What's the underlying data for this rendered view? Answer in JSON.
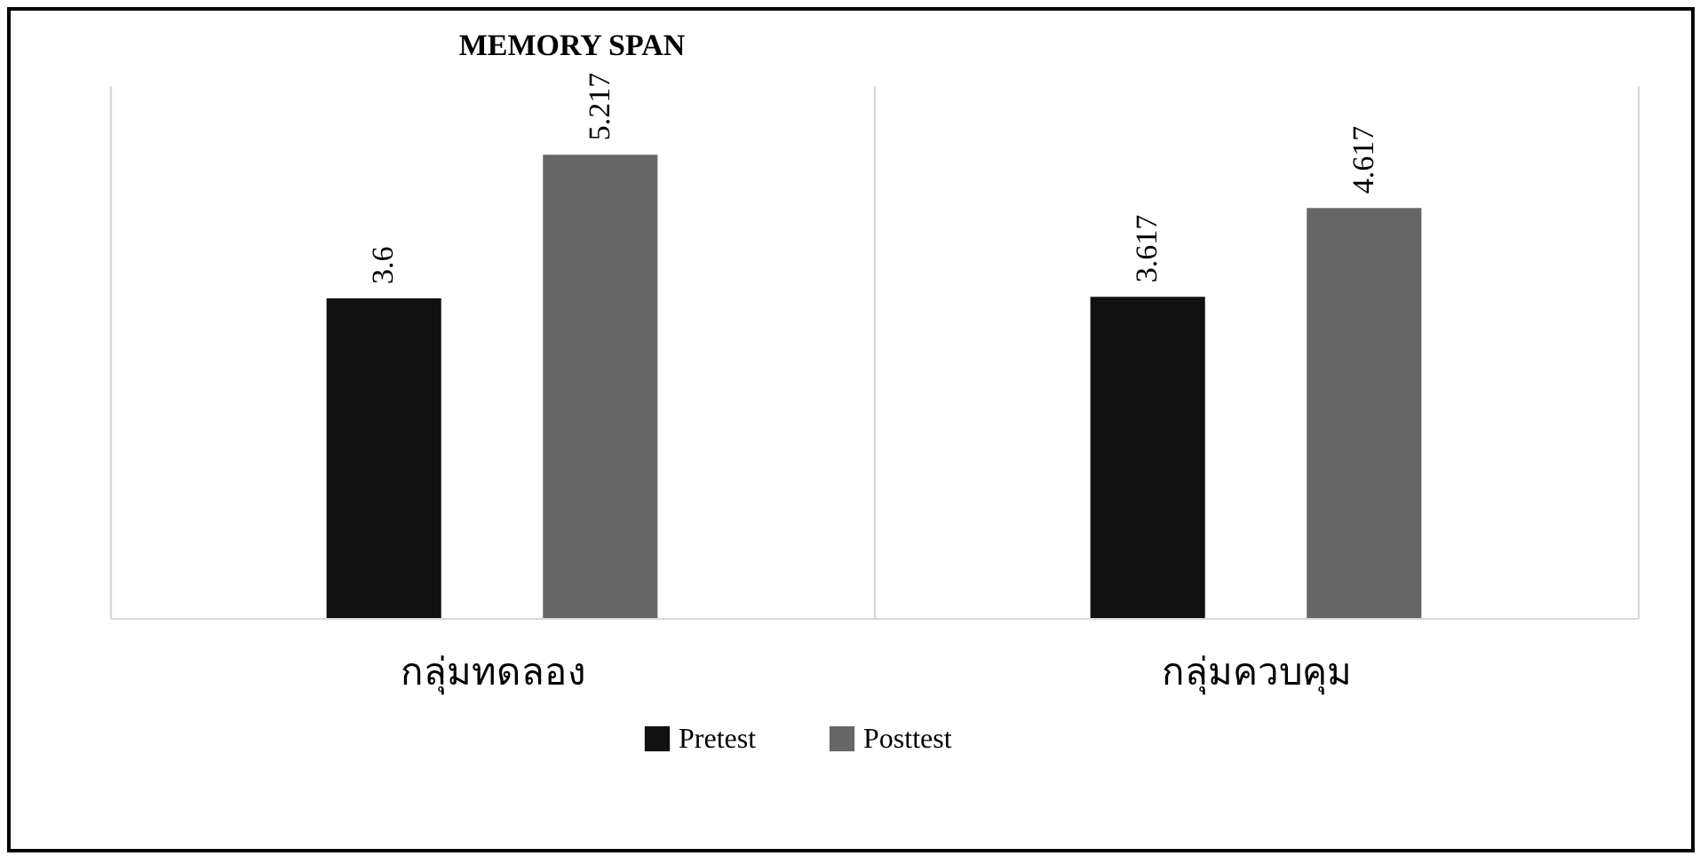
{
  "chart_data": {
    "type": "bar",
    "title": "MEMORY SPAN",
    "categories": [
      "กลุ่มทดลอง",
      "กลุ่มควบคุม"
    ],
    "series": [
      {
        "name": "Pretest",
        "color": "#111111",
        "values": [
          3.6,
          3.617
        ]
      },
      {
        "name": "Posttest",
        "color": "#666666",
        "values": [
          5.217,
          4.617
        ]
      }
    ],
    "ylim": [
      0,
      6
    ],
    "data_labels": true,
    "grid": "x",
    "legend": "bottom",
    "tick_labels": "x"
  }
}
